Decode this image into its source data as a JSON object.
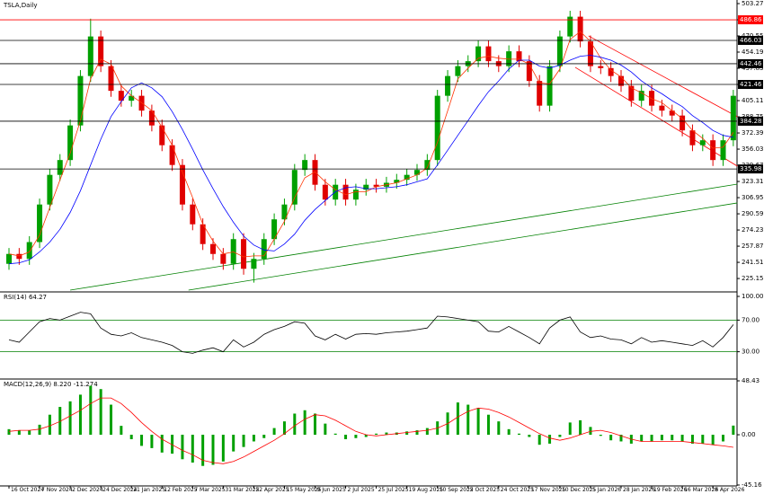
{
  "chart_data": [
    {
      "type": "candlestick",
      "title": "TSLA,Daily",
      "categories": [
        "16 Oct 2024",
        null,
        null,
        "7 Nov 2024",
        null,
        null,
        "2 Dec 2024",
        null,
        null,
        "24 Dec 2024",
        null,
        null,
        "21 Jan 2025",
        null,
        null,
        "12 Feb 2025",
        null,
        null,
        "7 Mar 2025",
        null,
        null,
        "31 Mar 2025",
        null,
        null,
        "22 Apr 2025",
        null,
        null,
        "15 May 2025",
        null,
        null,
        "9 Jun 2025",
        null,
        null,
        "2 Jul 2025",
        null,
        null,
        "25 Jul 2025",
        null,
        null,
        "19 Aug 2025",
        null,
        null,
        "10 Sep 2025",
        null,
        null,
        "2 Oct 2025",
        null,
        null,
        "24 Oct 2025",
        null,
        null,
        "17 Nov 2025",
        null,
        null,
        "10 Dec 2025",
        null,
        null,
        "5 Jan 2026",
        null,
        null,
        "28 Jan 2026",
        null,
        null,
        "19 Feb 2026",
        null,
        null,
        "16 Mar 2026",
        null,
        null,
        "8 Apr 2026",
        null,
        null
      ],
      "open": [
        240,
        250,
        245,
        262,
        300,
        330,
        345,
        380,
        430,
        470,
        440,
        415,
        405,
        410,
        395,
        380,
        360,
        340,
        300,
        280,
        260,
        250,
        240,
        265,
        235,
        245,
        265,
        285,
        300,
        335,
        345,
        320,
        305,
        320,
        305,
        315,
        320,
        318,
        322,
        325,
        330,
        335,
        345,
        410,
        430,
        440,
        445,
        460,
        445,
        440,
        455,
        445,
        425,
        400,
        440,
        470,
        490,
        465,
        440,
        438,
        430,
        420,
        405,
        415,
        400,
        395,
        390,
        375,
        360,
        365,
        345,
        365
      ],
      "high": [
        256,
        256,
        268,
        306,
        336,
        351,
        386,
        436,
        488,
        476,
        446,
        421,
        416,
        416,
        401,
        386,
        366,
        346,
        306,
        286,
        266,
        256,
        271,
        271,
        251,
        271,
        291,
        306,
        341,
        351,
        351,
        326,
        326,
        326,
        321,
        326,
        326,
        328,
        331,
        336,
        341,
        351,
        416,
        436,
        446,
        451,
        466,
        466,
        451,
        461,
        461,
        451,
        431,
        446,
        476,
        496,
        496,
        471,
        446,
        444,
        436,
        426,
        421,
        421,
        406,
        401,
        396,
        381,
        371,
        371,
        371,
        416
      ],
      "low": [
        234,
        239,
        239,
        256,
        294,
        324,
        339,
        374,
        424,
        434,
        409,
        399,
        399,
        389,
        374,
        354,
        334,
        294,
        274,
        254,
        244,
        234,
        234,
        229,
        221,
        239,
        259,
        279,
        294,
        329,
        314,
        299,
        299,
        299,
        299,
        309,
        312,
        312,
        316,
        319,
        324,
        329,
        339,
        404,
        424,
        434,
        439,
        439,
        434,
        434,
        439,
        419,
        394,
        394,
        434,
        464,
        459,
        434,
        432,
        424,
        414,
        399,
        399,
        394,
        389,
        384,
        369,
        354,
        354,
        339,
        339,
        359
      ],
      "close": [
        250,
        245,
        262,
        300,
        330,
        345,
        380,
        430,
        470,
        440,
        415,
        405,
        410,
        395,
        380,
        360,
        340,
        300,
        280,
        260,
        250,
        240,
        265,
        235,
        245,
        265,
        285,
        300,
        335,
        345,
        320,
        305,
        320,
        305,
        315,
        320,
        318,
        322,
        325,
        330,
        335,
        345,
        410,
        430,
        440,
        445,
        460,
        445,
        440,
        455,
        445,
        425,
        400,
        440,
        470,
        490,
        465,
        440,
        438,
        430,
        420,
        405,
        415,
        400,
        395,
        390,
        375,
        360,
        365,
        345,
        365,
        410
      ],
      "up_color": "#00a000",
      "down_color": "#e00000",
      "ma_lines": [
        {
          "color": "#ff3300",
          "values": [
            250,
            248,
            252,
            269,
            297,
            325,
            352,
            385,
            427,
            447,
            442,
            420,
            410,
            403,
            395,
            378,
            360,
            333,
            307,
            280,
            263,
            250,
            252,
            247,
            248,
            248,
            265,
            283,
            307,
            327,
            333,
            323,
            315,
            310,
            313,
            313,
            318,
            320,
            322,
            326,
            330,
            337,
            363,
            395,
            427,
            438,
            448,
            450,
            448,
            447,
            447,
            442,
            423,
            422,
            437,
            467,
            475,
            465,
            448,
            436,
            429,
            418,
            413,
            407,
            403,
            395,
            387,
            375,
            367,
            357,
            358,
            373
          ]
        },
        {
          "color": "#0000ff",
          "values": [
            240,
            241,
            244,
            252,
            262,
            275,
            292,
            314,
            340,
            366,
            389,
            404,
            418,
            423,
            418,
            409,
            394,
            376,
            356,
            335,
            316,
            298,
            282,
            268,
            259,
            254,
            253,
            260,
            270,
            284,
            295,
            304,
            313,
            317,
            318,
            316,
            316,
            317,
            318,
            320,
            323,
            326,
            340,
            355,
            370,
            385,
            400,
            414,
            425,
            437,
            446,
            446,
            440,
            438,
            441,
            446,
            450,
            451,
            449,
            446,
            441,
            434,
            425,
            418,
            412,
            405,
            399,
            390,
            383,
            375,
            370,
            368
          ]
        }
      ],
      "levels": [
        {
          "value": 486.86,
          "color": "#ff0000"
        },
        {
          "value": 466.03,
          "color": "#000000"
        },
        {
          "value": 442.46,
          "color": "#000000"
        },
        {
          "value": 421.46,
          "color": "#000000"
        },
        {
          "value": 384.28,
          "color": "#000000"
        },
        {
          "value": 335.98,
          "color": "#000000"
        }
      ],
      "trendlines": [
        {
          "color": "#008000",
          "x": [
            6,
            71.4
          ],
          "values": [
            213.4,
            320.6
          ]
        },
        {
          "color": "#008000",
          "x": [
            17.6,
            71.4
          ],
          "values": [
            213.4,
            301.6
          ]
        },
        {
          "color": "#ff0000",
          "x": [
            56.8,
            71.4
          ],
          "values": [
            470.6,
            388.8
          ]
        },
        {
          "color": "#ff0000",
          "x": [
            55.5,
            71.4
          ],
          "values": [
            438.8,
            338.8
          ]
        }
      ],
      "ylim": [
        212.5,
        506.9
      ],
      "yticks": [
        503.27,
        486.91,
        470.55,
        454.19,
        437.83,
        421.47,
        405.11,
        388.75,
        372.39,
        356.03,
        339.67,
        323.31,
        306.95,
        290.59,
        274.23,
        257.87,
        241.51,
        225.15
      ]
    },
    {
      "type": "line",
      "title": "RSI(14) 64.27",
      "color": "#000000",
      "values": [
        45,
        42,
        55,
        68,
        72,
        70,
        75,
        80,
        78,
        60,
        52,
        50,
        54,
        48,
        45,
        42,
        38,
        30,
        28,
        32,
        35,
        30,
        45,
        36,
        42,
        52,
        58,
        62,
        68,
        66,
        50,
        45,
        52,
        46,
        52,
        53,
        52,
        54,
        55,
        56,
        58,
        60,
        75,
        74,
        72,
        70,
        68,
        56,
        55,
        62,
        55,
        48,
        40,
        60,
        70,
        74,
        55,
        48,
        50,
        46,
        45,
        40,
        48,
        42,
        44,
        42,
        40,
        38,
        44,
        36,
        48,
        64.27
      ],
      "levels": [
        70,
        30
      ],
      "level_color": "#008000",
      "ylim": [
        0,
        100
      ],
      "yticks": [
        {
          "value": 100,
          "label": "100.00"
        },
        {
          "value": 70,
          "label": "70.00"
        },
        {
          "value": 30,
          "label": "30.00"
        }
      ]
    },
    {
      "type": "macd",
      "title": "MACD(12,26,9) 8.220 -11.274",
      "series": [
        {
          "color": "#00a000",
          "values": [
            5,
            4,
            4,
            9,
            18,
            25,
            30,
            36,
            44,
            41,
            27,
            8,
            -4,
            -10,
            -12,
            -16,
            -17,
            -22,
            -25,
            -28,
            -27,
            -24,
            -15,
            -11,
            -6,
            -3,
            6,
            12,
            19,
            22,
            19,
            10,
            1,
            -4,
            -3,
            -2,
            1,
            2,
            2,
            3,
            4,
            6,
            12,
            20,
            29,
            27,
            24,
            18,
            12,
            5,
            1,
            -2,
            -9,
            -8,
            -2,
            11,
            13,
            7,
            -1,
            -5,
            -6,
            -8,
            -6,
            -6,
            -5,
            -5,
            -6,
            -8,
            -8,
            -9,
            -6,
            8.22
          ]
        },
        {
          "color": "#ff0000",
          "values": [
            3,
            4,
            4,
            5,
            8,
            12,
            17,
            22,
            28,
            33,
            33,
            28,
            20,
            11,
            3,
            -4,
            -9,
            -14,
            -18,
            -23,
            -25,
            -26,
            -24,
            -20,
            -15,
            -10,
            -5,
            1,
            8,
            14,
            18,
            17,
            13,
            8,
            3,
            0,
            -1,
            0,
            1,
            2,
            3,
            4,
            6,
            10,
            16,
            21,
            24,
            23,
            20,
            16,
            11,
            6,
            1,
            -3,
            -5,
            -3,
            0,
            3,
            4,
            2,
            -1,
            -4,
            -6,
            -6,
            -6,
            -6,
            -6,
            -7,
            -8,
            -9,
            -10,
            -11.274
          ]
        }
      ],
      "ylim": [
        -45.16,
        48.43
      ],
      "yticks": [
        48.43,
        {
          "value": 0,
          "label": "0.00"
        },
        -45.16
      ]
    }
  ]
}
